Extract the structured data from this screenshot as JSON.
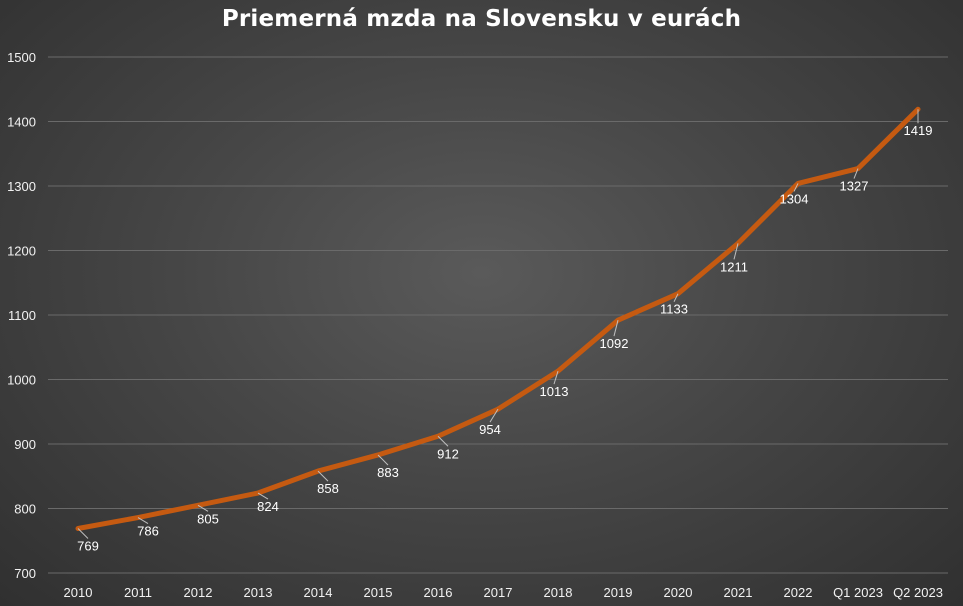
{
  "chart_data": {
    "type": "line",
    "title": "Priemerná mzda na Slovensku v eurách",
    "categories": [
      "2010",
      "2011",
      "2012",
      "2013",
      "2014",
      "2015",
      "2016",
      "2017",
      "2018",
      "2019",
      "2020",
      "2021",
      "2022",
      "Q1 2023",
      "Q2 2023"
    ],
    "series": [
      {
        "values": [
          769,
          786,
          805,
          824,
          858,
          883,
          912,
          954,
          1013,
          1092,
          1133,
          1211,
          1304,
          1327,
          1419
        ],
        "color": "#c55a11",
        "data_labels": [
          "769",
          "",
          "805",
          "824",
          "858",
          "883",
          "912",
          "954",
          "1013",
          "1092",
          "1133",
          "1211",
          "1304",
          "1327",
          "1419"
        ],
        "label_2011": "786"
      }
    ],
    "ylim": [
      700,
      1500
    ],
    "yticks": [
      "700",
      "800",
      "900",
      "1000",
      "1100",
      "1200",
      "1300",
      "1400",
      "1500"
    ],
    "grid": true,
    "legend": "none",
    "xlabel": "",
    "ylabel": ""
  }
}
